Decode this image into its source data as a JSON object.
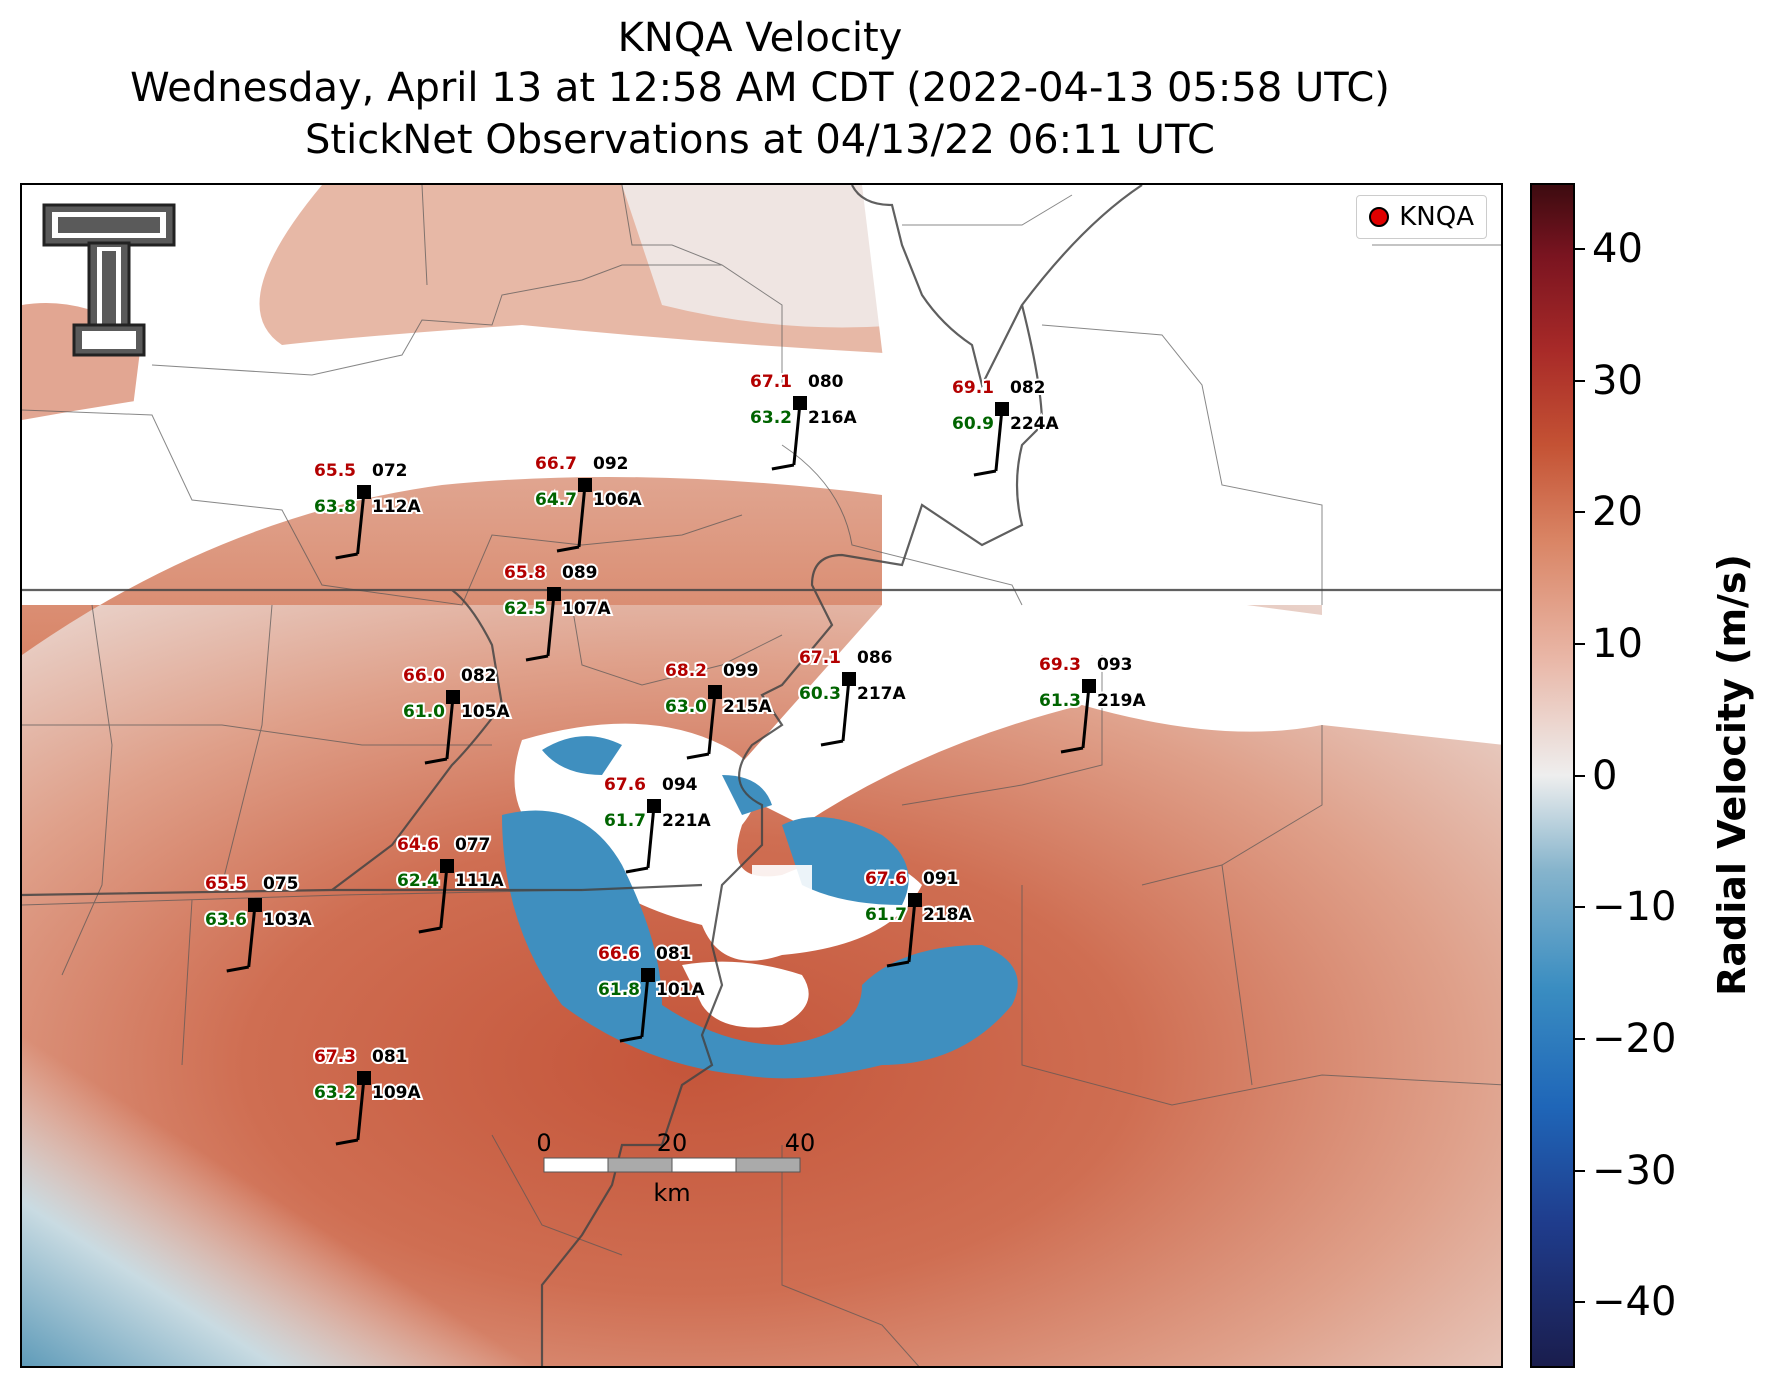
{
  "title": {
    "line1": "KNQA Velocity",
    "line2": "Wednesday, April 13 at 12:58 AM CDT (2022-04-13 05:58 UTC)",
    "line3": "StickNet Observations at 04/13/22 06:11 UTC"
  },
  "legend": {
    "label": "KNQA"
  },
  "colorbar": {
    "label": "Radial Velocity (m/s)",
    "ticks": [
      "40",
      "30",
      "20",
      "10",
      "0",
      "−10",
      "−20",
      "−30",
      "−40"
    ],
    "range": [
      -45,
      45
    ]
  },
  "scalebar": {
    "labels": [
      "0",
      "20",
      "40"
    ],
    "unit": "km"
  },
  "colors": {
    "temperature": "#b30000",
    "dewpoint": "#006400",
    "barb": "#000000"
  },
  "stations": [
    {
      "id": "112A",
      "temp": "65.5",
      "dew": "63.8",
      "dir": "072"
    },
    {
      "id": "106A",
      "temp": "66.7",
      "dew": "64.7",
      "dir": "092"
    },
    {
      "id": "216A",
      "temp": "67.1",
      "dew": "63.2",
      "dir": "080"
    },
    {
      "id": "224A",
      "temp": "69.1",
      "dew": "60.9",
      "dir": "082"
    },
    {
      "id": "107A",
      "temp": "65.8",
      "dew": "62.5",
      "dir": "089"
    },
    {
      "id": "215A",
      "temp": "68.2",
      "dew": "63.0",
      "dir": "099"
    },
    {
      "id": "217A",
      "temp": "67.1",
      "dew": "60.3",
      "dir": "086"
    },
    {
      "id": "219A",
      "temp": "69.3",
      "dew": "61.3",
      "dir": "093"
    },
    {
      "id": "105A",
      "temp": "66.0",
      "dew": "61.0",
      "dir": "082"
    },
    {
      "id": "221A",
      "temp": "67.6",
      "dew": "61.7",
      "dir": "094"
    },
    {
      "id": "111A",
      "temp": "64.6",
      "dew": "62.4",
      "dir": "077"
    },
    {
      "id": "103A",
      "temp": "65.5",
      "dew": "63.6",
      "dir": "075"
    },
    {
      "id": "218A",
      "temp": "67.6",
      "dew": "61.7",
      "dir": "091"
    },
    {
      "id": "101A",
      "temp": "66.6",
      "dew": "61.8",
      "dir": "081"
    },
    {
      "id": "109A",
      "temp": "67.3",
      "dew": "63.2",
      "dir": "081"
    }
  ]
}
